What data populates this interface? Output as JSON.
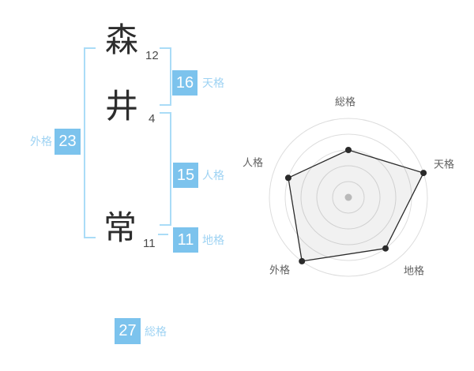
{
  "name_diagram": {
    "characters": [
      {
        "char": "森",
        "strokes": "12"
      },
      {
        "char": "井",
        "strokes": "4"
      },
      {
        "char": "常",
        "strokes": "11"
      }
    ],
    "kaku": {
      "tenkaku": {
        "value": "16",
        "label": "天格"
      },
      "jinkaku": {
        "value": "15",
        "label": "人格"
      },
      "chikaku": {
        "value": "11",
        "label": "地格"
      },
      "gaikaku": {
        "value": "23",
        "label": "外格"
      },
      "soukaku": {
        "value": "27",
        "label": "総格"
      }
    },
    "colors": {
      "value_box": "#7cc3ed",
      "bracket_line": "#aadcf7",
      "kaku_label": "#9fd3f3",
      "kanji_text": "#2d2d2d"
    }
  },
  "chart_data": {
    "type": "radar",
    "title": "",
    "categories": [
      "総格",
      "天格",
      "地格",
      "外格",
      "人格"
    ],
    "values": [
      60,
      100,
      80,
      100,
      80
    ],
    "max": 100,
    "rings": 5,
    "grid": "concentric-circles",
    "legend": "none",
    "ring_color": "#dddddd",
    "line_color": "#2a2a2a",
    "fill_color": "rgba(0,0,0,0.055)",
    "dot_color": "#2a2a2a",
    "center_dot_color": "#c4c4c4",
    "label_color": "#5f5f5f"
  }
}
